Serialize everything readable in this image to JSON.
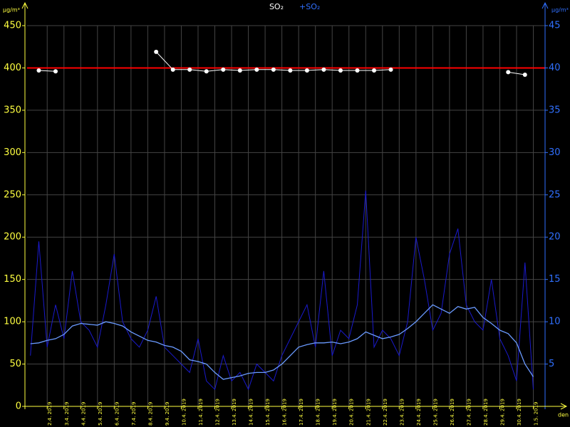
{
  "chart_data": {
    "type": "line",
    "y_unit": "µg/m³",
    "y2_unit": "µg/m³",
    "x_label": "den",
    "xlim": [
      -0.2,
      30.7
    ],
    "xticks": [
      {
        "value": 1,
        "label": "2.4. 2019"
      },
      {
        "value": 2,
        "label": "3.4. 2019"
      },
      {
        "value": 3,
        "label": "4.4. 2019"
      },
      {
        "value": 4,
        "label": "5.4. 2019"
      },
      {
        "value": 5,
        "label": "6.4. 2019"
      },
      {
        "value": 6,
        "label": "7.4. 2019"
      },
      {
        "value": 7,
        "label": "8.4. 2019"
      },
      {
        "value": 8,
        "label": "9.4. 2019"
      },
      {
        "value": 9,
        "label": "10.4. 2019"
      },
      {
        "value": 10,
        "label": "11.4. 2019"
      },
      {
        "value": 11,
        "label": "12.4. 2019"
      },
      {
        "value": 12,
        "label": "13.4. 2019"
      },
      {
        "value": 13,
        "label": "14.4. 2019"
      },
      {
        "value": 14,
        "label": "15.4. 2019"
      },
      {
        "value": 15,
        "label": "16.4. 2019"
      },
      {
        "value": 16,
        "label": "17.4. 2019"
      },
      {
        "value": 17,
        "label": "18.4. 2019"
      },
      {
        "value": 18,
        "label": "19.4. 2019"
      },
      {
        "value": 19,
        "label": "20.4. 2019"
      },
      {
        "value": 20,
        "label": "21.4. 2019"
      },
      {
        "value": 21,
        "label": "22.4. 2019"
      },
      {
        "value": 22,
        "label": "23.4. 2019"
      },
      {
        "value": 23,
        "label": "24.4. 2019"
      },
      {
        "value": 24,
        "label": "25.4. 2019"
      },
      {
        "value": 25,
        "label": "26.4. 2019"
      },
      {
        "value": 26,
        "label": "27.4. 2019"
      },
      {
        "value": 27,
        "label": "28.4. 2019"
      },
      {
        "value": 28,
        "label": "29.4. 2019"
      },
      {
        "value": 29,
        "label": "30.4. 2019"
      },
      {
        "value": 30,
        "label": "1.5. 2019"
      }
    ],
    "ylim": [
      0,
      450
    ],
    "yticks": [
      0,
      50,
      100,
      150,
      200,
      250,
      300,
      350,
      400,
      450
    ],
    "y2lim": [
      0,
      45
    ],
    "y2ticks": [
      5,
      10,
      15,
      20,
      25,
      30,
      35,
      40,
      45
    ],
    "grid": true,
    "reference_line": {
      "value": 400,
      "color": "#ff0000"
    },
    "series": [
      {
        "name": "SO₂",
        "color": "#ffffff",
        "x": [
          0.5,
          1.5,
          2.5,
          3.5,
          4.5,
          5.5,
          6.5,
          7.5,
          8.5,
          9.5,
          10.5,
          11.5,
          12.5,
          13.5,
          14.5,
          15.5,
          16.5,
          17.5,
          18.5,
          19.5,
          20.5,
          21.5,
          22.5,
          23.5,
          24.5,
          25.5,
          26.5,
          27.5,
          28.5,
          29.5
        ],
        "values": [
          397,
          396,
          null,
          null,
          null,
          null,
          null,
          419,
          398,
          398,
          396,
          398,
          397,
          398,
          398,
          397,
          397,
          398,
          397,
          397,
          397,
          398,
          null,
          null,
          null,
          null,
          null,
          null,
          395,
          392
        ]
      },
      {
        "name": "+SO₂",
        "color": "#3070ff",
        "axis": "y2",
        "raw_color": "#1a1acc",
        "trend_color": "#6a9aff",
        "x": [
          0,
          0.5,
          1,
          1.5,
          2,
          2.5,
          3,
          3.5,
          4,
          4.5,
          5,
          5.5,
          6,
          6.5,
          7,
          7.5,
          8,
          8.5,
          9,
          9.5,
          10,
          10.5,
          11,
          11.5,
          12,
          12.5,
          13,
          13.5,
          14,
          14.5,
          15,
          15.5,
          16,
          16.5,
          17,
          17.5,
          18,
          18.5,
          19,
          19.5,
          20,
          20.5,
          21,
          21.5,
          22,
          22.5,
          23,
          23.5,
          24,
          24.5,
          25,
          25.5,
          26,
          26.5,
          27,
          27.5,
          28,
          28.5,
          29,
          29.5,
          30
        ],
        "values": [
          6,
          19.5,
          7,
          12,
          8,
          16,
          10,
          9,
          7,
          12,
          18,
          10,
          8,
          7,
          9,
          13,
          7,
          6,
          5,
          4,
          8,
          3,
          2,
          6,
          3,
          4,
          2,
          5,
          4,
          3,
          6,
          8,
          10,
          12,
          7,
          16,
          6,
          9,
          8,
          12,
          25.5,
          7,
          9,
          8,
          6,
          10,
          20,
          15,
          9,
          11,
          18,
          21,
          12,
          10,
          9,
          15,
          8,
          6,
          3,
          17,
          2
        ],
        "trend": [
          7.4,
          7.5,
          7.8,
          8.0,
          8.5,
          9.5,
          9.8,
          9.7,
          9.6,
          10.0,
          9.8,
          9.5,
          8.8,
          8.3,
          7.8,
          7.6,
          7.2,
          7.0,
          6.5,
          5.5,
          5.3,
          5.0,
          4.0,
          3.2,
          3.4,
          3.6,
          3.9,
          4.0,
          4.0,
          4.3,
          5.0,
          6.0,
          7.0,
          7.3,
          7.5,
          7.5,
          7.6,
          7.4,
          7.6,
          8.0,
          8.8,
          8.4,
          8.0,
          8.2,
          8.5,
          9.2,
          10.0,
          11.0,
          12.0,
          11.5,
          11.0,
          11.8,
          11.5,
          11.7,
          10.5,
          9.8,
          9.0,
          8.6,
          7.5,
          5.0,
          3.5
        ]
      }
    ]
  }
}
